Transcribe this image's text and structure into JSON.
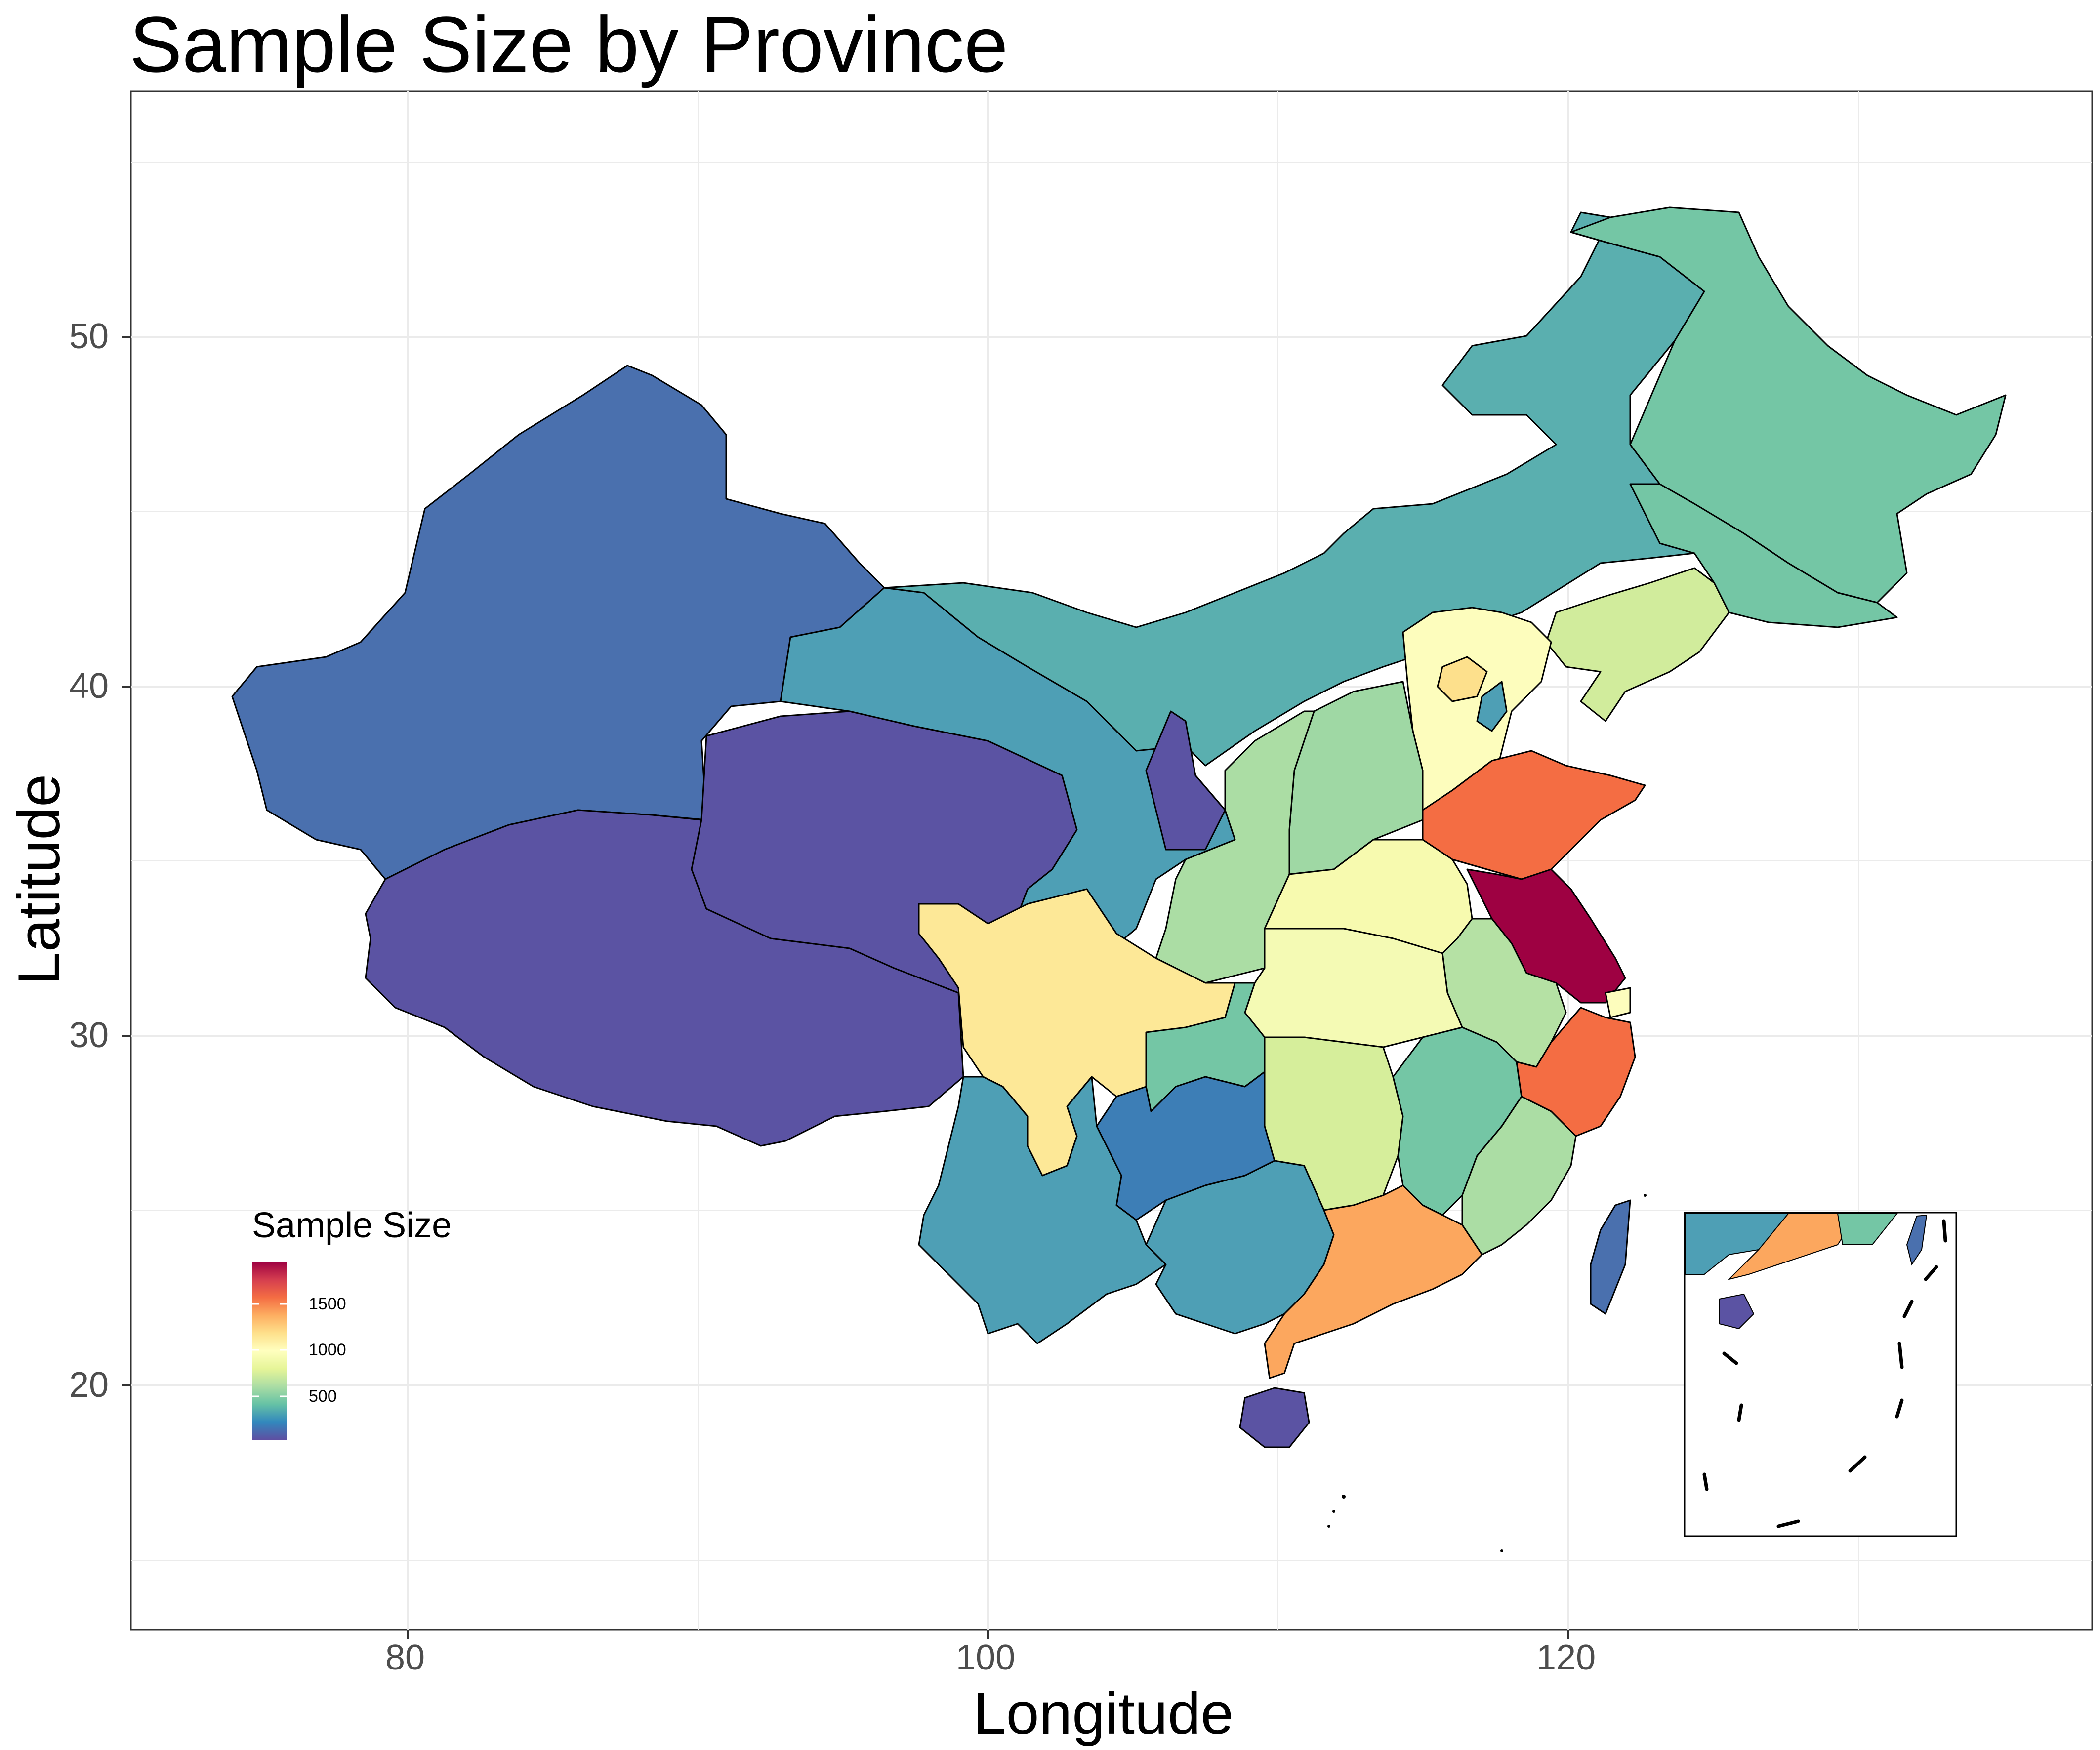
{
  "title": "Sample Size by Province",
  "axes": {
    "xlabel": "Longitude",
    "ylabel": "Latitude",
    "xticks": [
      "80",
      "100",
      "120"
    ],
    "yticks": [
      "50",
      "40",
      "30",
      "20"
    ]
  },
  "legend": {
    "title": "Sample Size",
    "labels": [
      "1500",
      "1000",
      "500"
    ],
    "placement": "bottom-left inside panel",
    "palette": [
      "#5e4fa2",
      "#3288bd",
      "#66c2a5",
      "#abdda4",
      "#e6f598",
      "#ffffbf",
      "#fee08b",
      "#fdae61",
      "#f46d43",
      "#d53e4f",
      "#9e0142"
    ]
  },
  "chart_data": {
    "type": "choropleth map",
    "xlim": [
      70,
      138
    ],
    "ylim": [
      13,
      57
    ],
    "grid": true,
    "inset": "South China Sea islands (bottom-right)",
    "regions": [
      {
        "name": "Xinjiang",
        "value": 160
      },
      {
        "name": "Xizang",
        "value": 20
      },
      {
        "name": "Qinghai",
        "value": 40
      },
      {
        "name": "Gansu",
        "value": 320
      },
      {
        "name": "Inner Mongolia",
        "value": 400
      },
      {
        "name": "Heilongjiang",
        "value": 520
      },
      {
        "name": "Jilin",
        "value": 520
      },
      {
        "name": "Liaoning",
        "value": 820
      },
      {
        "name": "Beijing",
        "value": 1150
      },
      {
        "name": "Tianjin",
        "value": 300
      },
      {
        "name": "Hebei",
        "value": 980
      },
      {
        "name": "Shanxi",
        "value": 640
      },
      {
        "name": "Shaanxi",
        "value": 700
      },
      {
        "name": "Ningxia",
        "value": 80
      },
      {
        "name": "Shandong",
        "value": 1600
      },
      {
        "name": "Henan",
        "value": 940
      },
      {
        "name": "Jiangsu",
        "value": 1900
      },
      {
        "name": "Shanghai",
        "value": 960
      },
      {
        "name": "Anhui",
        "value": 700
      },
      {
        "name": "Hubei",
        "value": 920
      },
      {
        "name": "Sichuan",
        "value": 1150
      },
      {
        "name": "Chongqing",
        "value": 580
      },
      {
        "name": "Zhejiang",
        "value": 1600
      },
      {
        "name": "Jiangxi",
        "value": 520
      },
      {
        "name": "Hunan",
        "value": 840
      },
      {
        "name": "Guizhou",
        "value": 240
      },
      {
        "name": "Yunnan",
        "value": 320
      },
      {
        "name": "Guangxi",
        "value": 320
      },
      {
        "name": "Guangdong",
        "value": 1400
      },
      {
        "name": "Fujian",
        "value": 700
      },
      {
        "name": "Hainan",
        "value": 40
      },
      {
        "name": "Taiwan",
        "value": 120
      }
    ]
  }
}
